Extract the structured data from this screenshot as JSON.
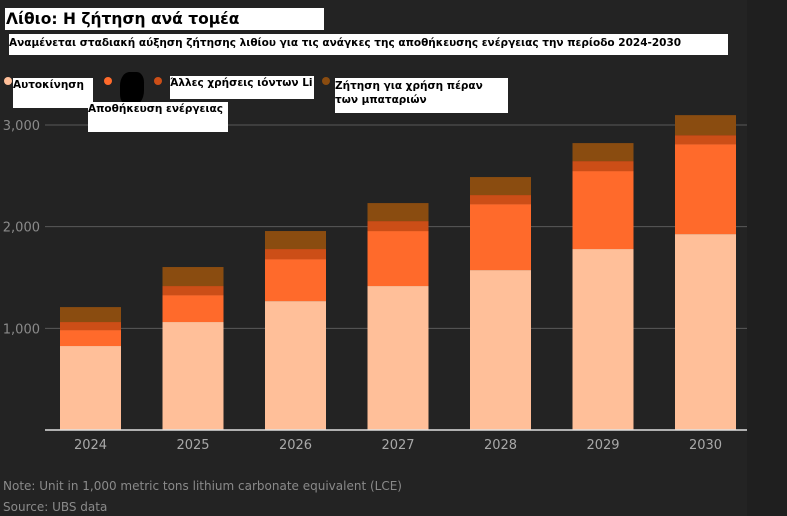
{
  "header": {
    "title": "Λίθιο: Η ζήτηση ανά τομέα",
    "subtitle": "Αναμένεται σταδιακή αύξηση ζήτησης λιθίου για τις ανάγκες της αποθήκευσης ενέργειας την περίοδο 2024-2030"
  },
  "legend": [
    {
      "label": "Αυτοκίνηση",
      "color": "#ffbf99"
    },
    {
      "label": "Αποθήκευση ενέργειας",
      "color": "#ff6a2b"
    },
    {
      "label": "Άλλες χρήσεις ιόντων Li",
      "color": "#cc4e17"
    },
    {
      "label": "Ζήτηση για χρήση πέραν των μπαταριών",
      "color": "#8a4c10"
    }
  ],
  "footer": {
    "note": "Note: Unit in 1,000 metric tons lithium carbonate equivalent (LCE)",
    "source": "Source: UBS data"
  },
  "chart_data": {
    "type": "bar",
    "stacked": true,
    "title": "Λίθιο: Η ζήτηση ανά τομέα",
    "subtitle": "Αναμένεται σταδιακή αύξηση ζήτησης λιθίου για τις ανάγκες της αποθήκευσης ενέργειας την περίοδο 2024-2030",
    "xlabel": "",
    "ylabel": "",
    "categories": [
      "2024",
      "2025",
      "2026",
      "2027",
      "2028",
      "2029",
      "2030"
    ],
    "ylim": [
      0,
      3000
    ],
    "yticks": [
      1000,
      2000,
      3000
    ],
    "ytick_labels": [
      "1,000",
      "2,000",
      "3,000"
    ],
    "grid": true,
    "legend_position": "top",
    "series": [
      {
        "name": "Αυτοκίνηση",
        "color": "#ffbf99",
        "values": [
          826,
          1062,
          1268,
          1416,
          1573,
          1780,
          1927
        ]
      },
      {
        "name": "Αποθήκευση ενέργειας",
        "color": "#ff6a2b",
        "values": [
          157,
          265,
          413,
          541,
          649,
          767,
          885
        ]
      },
      {
        "name": "Άλλες χρήσεις ιόντων Li",
        "color": "#cc4e17",
        "values": [
          79,
          89,
          99,
          98,
          89,
          98,
          88
        ]
      },
      {
        "name": "Ζήτηση για χρήση πέραν των μπαταριών",
        "color": "#8a4c10",
        "values": [
          147,
          187,
          177,
          177,
          177,
          177,
          197
        ]
      }
    ]
  }
}
